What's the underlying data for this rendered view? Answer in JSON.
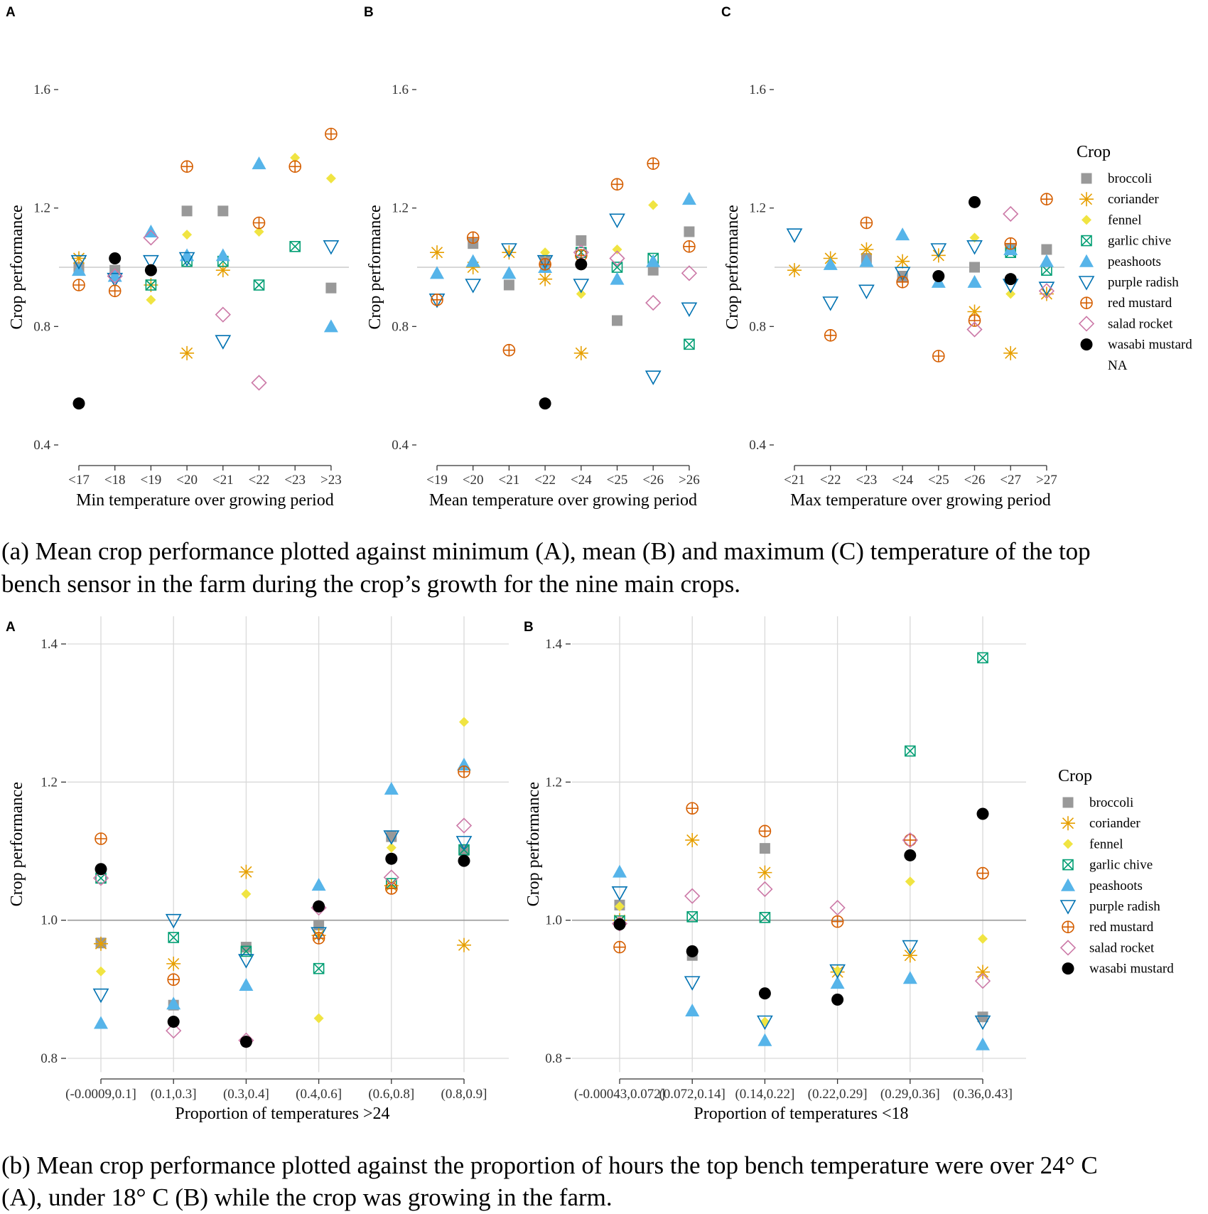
{
  "crops": [
    "broccoli",
    "coriander",
    "fennel",
    "garlic chive",
    "peashoots",
    "purple radish",
    "red mustard",
    "salad rocket",
    "wasabi mustard"
  ],
  "legend_extra": "NA",
  "legend_title": "Crop",
  "styles": {
    "broccoli": {
      "shape": "square",
      "color": "#999999"
    },
    "coriander": {
      "shape": "asterisk",
      "color": "#E69F00"
    },
    "fennel": {
      "shape": "diamond-filled",
      "color": "#F0E442"
    },
    "garlic chive": {
      "shape": "square-x",
      "color": "#009E73"
    },
    "peashoots": {
      "shape": "triangle-up",
      "color": "#56B4E9"
    },
    "purple radish": {
      "shape": "triangle-down",
      "color": "#0072B2"
    },
    "red mustard": {
      "shape": "circle-plus",
      "color": "#D55E00"
    },
    "salad rocket": {
      "shape": "diamond-open",
      "color": "#CC79A7"
    },
    "wasabi mustard": {
      "shape": "circle",
      "color": "#000000"
    }
  },
  "captions": {
    "a": [
      "(a) Mean crop performance plotted against minimum (A), mean (B) and maximum (C) temperature of the top",
      "bench sensor in the farm during the crop’s growth for the nine main crops."
    ],
    "b": [
      "(b) Mean crop performance plotted against the proportion of hours the top bench temperature were over 24° C",
      "(A), under 18° C (B) while the crop was growing in the farm."
    ]
  },
  "chart_data": [
    {
      "id": "a-A",
      "panel_label": "A",
      "type": "scatter",
      "xlabel": "Min temperature over growing period",
      "ylabel": "Crop performance",
      "categories": [
        "<17",
        "<18",
        "<19",
        "<20",
        "<21",
        "<22",
        "<23",
        ">23"
      ],
      "ylim": [
        0.35,
        1.65
      ],
      "yticks": [
        0.4,
        0.8,
        1.2,
        1.6
      ],
      "yticklabels": [
        "0.4",
        "0.8",
        "1.2",
        "1.6"
      ],
      "reference_line": 1.0,
      "grid": false,
      "series": [
        {
          "name": "broccoli",
          "values": [
            1.0,
            0.99,
            null,
            1.19,
            1.19,
            null,
            null,
            0.93
          ]
        },
        {
          "name": "coriander",
          "values": [
            1.03,
            null,
            0.94,
            0.71,
            0.99,
            null,
            null,
            null
          ]
        },
        {
          "name": "fennel",
          "values": [
            null,
            null,
            0.89,
            1.11,
            null,
            1.12,
            1.37,
            1.3
          ]
        },
        {
          "name": "garlic chive",
          "values": [
            null,
            null,
            0.94,
            1.02,
            1.02,
            0.94,
            1.07,
            null
          ]
        },
        {
          "name": "peashoots",
          "values": [
            0.99,
            0.97,
            1.12,
            1.04,
            1.04,
            1.35,
            null,
            0.8
          ]
        },
        {
          "name": "purple radish",
          "values": [
            1.02,
            0.96,
            1.02,
            1.03,
            0.75,
            null,
            null,
            1.07
          ]
        },
        {
          "name": "red mustard",
          "values": [
            0.94,
            0.92,
            null,
            1.34,
            null,
            1.15,
            1.34,
            1.45
          ]
        },
        {
          "name": "salad rocket",
          "values": [
            null,
            0.97,
            1.1,
            null,
            0.84,
            0.61,
            null,
            null
          ]
        },
        {
          "name": "wasabi mustard",
          "values": [
            0.54,
            1.03,
            0.99,
            null,
            null,
            null,
            null,
            null
          ]
        }
      ]
    },
    {
      "id": "a-B",
      "panel_label": "B",
      "type": "scatter",
      "xlabel": "Mean temperature over growing period",
      "ylabel": "Crop performance",
      "categories": [
        "<19",
        "<20",
        "<21",
        "<22",
        "<24",
        "<25",
        "<26",
        ">26"
      ],
      "ylim": [
        0.35,
        1.65
      ],
      "yticks": [
        0.4,
        0.8,
        1.2,
        1.6
      ],
      "yticklabels": [
        "0.4",
        "0.8",
        "1.2",
        "1.6"
      ],
      "reference_line": 1.0,
      "grid": false,
      "series": [
        {
          "name": "broccoli",
          "values": [
            null,
            1.08,
            0.94,
            1.02,
            1.09,
            0.82,
            0.99,
            1.12
          ]
        },
        {
          "name": "coriander",
          "values": [
            1.05,
            1.0,
            1.05,
            0.96,
            0.71,
            null,
            null,
            null
          ]
        },
        {
          "name": "fennel",
          "values": [
            null,
            null,
            null,
            1.05,
            0.91,
            1.06,
            1.21,
            null
          ]
        },
        {
          "name": "garlic chive",
          "values": [
            null,
            null,
            null,
            null,
            1.05,
            1.0,
            1.03,
            0.74
          ]
        },
        {
          "name": "peashoots",
          "values": [
            0.98,
            1.02,
            0.98,
            1.0,
            null,
            0.96,
            1.02,
            1.23
          ]
        },
        {
          "name": "purple radish",
          "values": [
            0.89,
            0.94,
            1.06,
            1.02,
            0.94,
            1.16,
            0.63,
            0.86
          ]
        },
        {
          "name": "red mustard",
          "values": [
            0.89,
            1.1,
            0.72,
            1.01,
            1.04,
            1.28,
            1.35,
            1.07
          ]
        },
        {
          "name": "salad rocket",
          "values": [
            null,
            null,
            null,
            null,
            1.05,
            1.03,
            0.88,
            0.98
          ]
        },
        {
          "name": "wasabi mustard",
          "values": [
            null,
            null,
            null,
            0.54,
            1.01,
            null,
            null,
            null
          ]
        }
      ]
    },
    {
      "id": "a-C",
      "panel_label": "C",
      "type": "scatter",
      "xlabel": "Max temperature over growing period",
      "ylabel": "Crop performance",
      "categories": [
        "<21",
        "<22",
        "<23",
        "<24",
        "<25",
        "<26",
        "<27",
        ">27"
      ],
      "ylim": [
        0.35,
        1.65
      ],
      "yticks": [
        0.4,
        0.8,
        1.2,
        1.6
      ],
      "yticklabels": [
        "0.4",
        "0.8",
        "1.2",
        "1.6"
      ],
      "reference_line": 1.0,
      "grid": false,
      "series": [
        {
          "name": "broccoli",
          "values": [
            null,
            null,
            1.03,
            0.97,
            null,
            1.0,
            1.06,
            1.06
          ]
        },
        {
          "name": "coriander",
          "values": [
            0.99,
            1.03,
            1.06,
            1.02,
            1.04,
            0.85,
            0.71,
            0.91
          ]
        },
        {
          "name": "fennel",
          "values": [
            null,
            null,
            null,
            null,
            null,
            1.1,
            0.91,
            null
          ]
        },
        {
          "name": "garlic chive",
          "values": [
            null,
            null,
            null,
            null,
            null,
            null,
            1.05,
            0.99
          ]
        },
        {
          "name": "peashoots",
          "values": [
            null,
            1.01,
            1.02,
            1.11,
            0.95,
            0.95,
            1.06,
            1.02
          ]
        },
        {
          "name": "purple radish",
          "values": [
            1.11,
            0.88,
            0.92,
            0.98,
            1.06,
            1.07,
            0.94,
            0.93
          ]
        },
        {
          "name": "red mustard",
          "values": [
            null,
            0.77,
            1.15,
            0.95,
            0.7,
            0.82,
            1.08,
            1.23
          ]
        },
        {
          "name": "salad rocket",
          "values": [
            null,
            null,
            null,
            null,
            null,
            0.79,
            1.18,
            0.92
          ]
        },
        {
          "name": "wasabi mustard",
          "values": [
            null,
            null,
            null,
            null,
            0.97,
            1.22,
            0.96,
            null
          ]
        }
      ]
    },
    {
      "id": "b-A",
      "panel_label": "A",
      "type": "scatter",
      "xlabel": "Proportion of temperatures >24",
      "ylabel": "Crop performance",
      "categories": [
        "(-0.0009,0.1]",
        "(0.1,0.3]",
        "(0.3,0.4]",
        "(0.4,0.6]",
        "(0.6,0.8]",
        "(0.8,0.9]"
      ],
      "ylim": [
        0.78,
        1.44
      ],
      "yticks": [
        0.8,
        1.0,
        1.2,
        1.4
      ],
      "yticklabels": [
        "0.8",
        "1.0",
        "1.2",
        "1.4"
      ],
      "reference_line": 1.0,
      "grid": true,
      "series": [
        {
          "name": "broccoli",
          "values": [
            0.967,
            0.877,
            0.961,
            0.993,
            1.121,
            1.101
          ]
        },
        {
          "name": "coriander",
          "values": [
            0.966,
            0.937,
            1.07,
            0.978,
            1.05,
            0.964
          ]
        },
        {
          "name": "fennel",
          "values": [
            0.926,
            null,
            1.038,
            0.858,
            1.105,
            1.287
          ]
        },
        {
          "name": "garlic chive",
          "values": [
            1.061,
            0.975,
            0.955,
            0.93,
            1.053,
            1.102
          ]
        },
        {
          "name": "peashoots",
          "values": [
            0.851,
            0.879,
            0.906,
            1.051,
            1.19,
            1.225
          ]
        },
        {
          "name": "purple radish",
          "values": [
            0.892,
            1.0,
            0.942,
            0.981,
            1.121,
            1.113
          ]
        },
        {
          "name": "red mustard",
          "values": [
            1.118,
            0.914,
            null,
            0.974,
            1.046,
            1.215
          ]
        },
        {
          "name": "salad rocket",
          "values": [
            1.061,
            0.84,
            0.826,
            1.018,
            1.062,
            1.137
          ]
        },
        {
          "name": "wasabi mustard",
          "values": [
            1.074,
            0.853,
            0.824,
            1.02,
            1.089,
            1.086
          ]
        }
      ]
    },
    {
      "id": "b-B",
      "panel_label": "B",
      "type": "scatter",
      "xlabel": "Proportion of temperatures <18",
      "ylabel": "Crop performance",
      "categories": [
        "(-0.00043,0.072]",
        "(0.072,0.14]",
        "(0.14,0.22]",
        "(0.22,0.29]",
        "(0.29,0.36]",
        "(0.36,0.43]"
      ],
      "ylim": [
        0.78,
        1.44
      ],
      "yticks": [
        0.8,
        1.0,
        1.2,
        1.4
      ],
      "yticklabels": [
        "0.8",
        "1.0",
        "1.2",
        "1.4"
      ],
      "reference_line": 1.0,
      "grid": true,
      "series": [
        {
          "name": "broccoli",
          "values": [
            1.022,
            0.949,
            1.104,
            null,
            null,
            0.86
          ]
        },
        {
          "name": "coriander",
          "values": [
            1.0,
            1.116,
            1.069,
            0.925,
            0.949,
            0.925
          ]
        },
        {
          "name": "fennel",
          "values": [
            1.02,
            null,
            0.853,
            0.927,
            1.056,
            0.973
          ]
        },
        {
          "name": "garlic chive",
          "values": [
            0.999,
            1.005,
            1.004,
            null,
            1.245,
            1.38
          ]
        },
        {
          "name": "peashoots",
          "values": [
            1.07,
            0.869,
            0.826,
            0.909,
            0.916,
            0.82
          ]
        },
        {
          "name": "purple radish",
          "values": [
            1.04,
            0.91,
            0.853,
            0.927,
            0.962,
            0.853
          ]
        },
        {
          "name": "red mustard",
          "values": [
            0.961,
            1.162,
            1.129,
            0.998,
            1.116,
            1.068
          ]
        },
        {
          "name": "salad rocket",
          "values": [
            0.995,
            1.035,
            1.045,
            1.018,
            1.116,
            0.912
          ]
        },
        {
          "name": "wasabi mustard",
          "values": [
            0.994,
            0.955,
            0.894,
            0.885,
            1.094,
            1.154
          ]
        }
      ]
    }
  ]
}
